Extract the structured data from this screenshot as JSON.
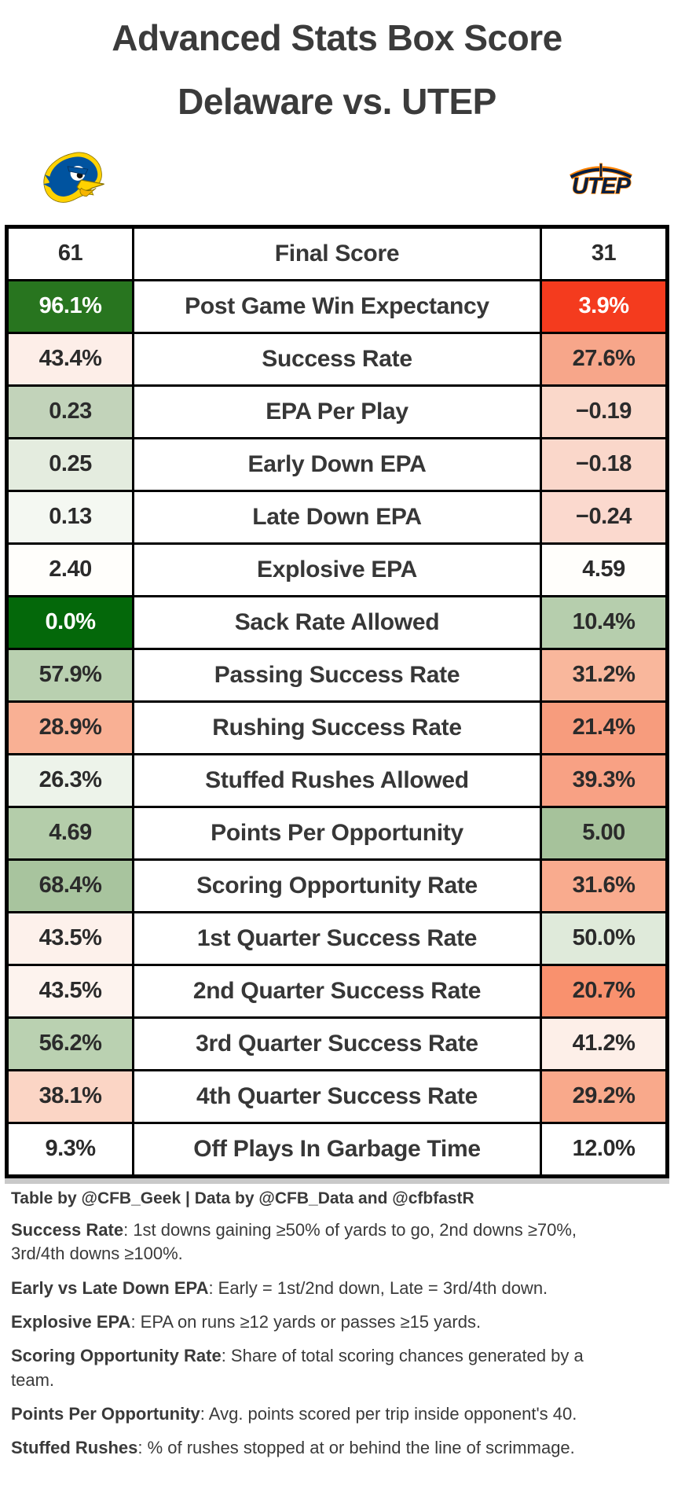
{
  "title": {
    "line1": "Advanced Stats Box Score",
    "line2": "Delaware vs. UTEP"
  },
  "teams": {
    "home": {
      "name": "Delaware",
      "score": "61",
      "colors": {
        "primary": "#00539f",
        "secondary": "#ffd200"
      }
    },
    "away": {
      "name": "UTEP",
      "score": "31",
      "colors": {
        "primary": "#041e42",
        "secondary": "#ff8200"
      }
    }
  },
  "status_colors": {
    "strong_positive_green": "#1b6e12",
    "positive_green": "#28751f",
    "strong_negative_red": "#f43b1e",
    "negative_salmon": "#f79c7d",
    "neutral_white": "#ffffff"
  },
  "table": {
    "rows": [
      {
        "label": "Final Score",
        "home": {
          "value": "61",
          "bg": "#ffffff"
        },
        "away": {
          "value": "31",
          "bg": "#ffffff"
        }
      },
      {
        "label": "Post Game Win Expectancy",
        "home": {
          "value": "96.1%",
          "bg": "#28751f",
          "fg": "#ffffff"
        },
        "away": {
          "value": "3.9%",
          "bg": "#f43b1e",
          "fg": "#ffffff"
        }
      },
      {
        "label": "Success Rate",
        "home": {
          "value": "43.4%",
          "bg": "#fdeee8"
        },
        "away": {
          "value": "27.6%",
          "bg": "#f7a68a"
        }
      },
      {
        "label": "EPA Per Play",
        "home": {
          "value": "0.23",
          "bg": "#c2d3ba"
        },
        "away": {
          "value": "−0.19",
          "bg": "#fad8ca"
        }
      },
      {
        "label": "Early Down EPA",
        "home": {
          "value": "0.25",
          "bg": "#e4ecdf"
        },
        "away": {
          "value": "−0.18",
          "bg": "#fad7ca"
        }
      },
      {
        "label": "Late Down EPA",
        "home": {
          "value": "0.13",
          "bg": "#f4f8f2"
        },
        "away": {
          "value": "−0.24",
          "bg": "#fbd9ce"
        }
      },
      {
        "label": "Explosive EPA",
        "home": {
          "value": "2.40",
          "bg": "#fffefb"
        },
        "away": {
          "value": "4.59",
          "bg": "#fffefb"
        }
      },
      {
        "label": "Sack Rate Allowed",
        "home": {
          "value": "0.0%",
          "bg": "#04680a",
          "fg": "#ffffff"
        },
        "away": {
          "value": "10.4%",
          "bg": "#b6cead"
        }
      },
      {
        "label": "Passing Success Rate",
        "home": {
          "value": "57.9%",
          "bg": "#b9d0b0"
        },
        "away": {
          "value": "31.2%",
          "bg": "#f9b79c"
        }
      },
      {
        "label": "Rushing Success Rate",
        "home": {
          "value": "28.9%",
          "bg": "#f9b094"
        },
        "away": {
          "value": "21.4%",
          "bg": "#f79c7d"
        }
      },
      {
        "label": "Stuffed Rushes Allowed",
        "home": {
          "value": "26.3%",
          "bg": "#edf3ea"
        },
        "away": {
          "value": "39.3%",
          "bg": "#f8a184"
        }
      },
      {
        "label": "Points Per Opportunity",
        "home": {
          "value": "4.69",
          "bg": "#b4cdaa"
        },
        "away": {
          "value": "5.00",
          "bg": "#a6c29b"
        }
      },
      {
        "label": "Scoring Opportunity Rate",
        "home": {
          "value": "68.4%",
          "bg": "#a8c49e"
        },
        "away": {
          "value": "31.6%",
          "bg": "#f9ab8e"
        }
      },
      {
        "label": "1st Quarter Success Rate",
        "home": {
          "value": "43.5%",
          "bg": "#fdf1eb"
        },
        "away": {
          "value": "50.0%",
          "bg": "#dfeada"
        }
      },
      {
        "label": "2nd Quarter Success Rate",
        "home": {
          "value": "43.5%",
          "bg": "#fdf3ee"
        },
        "away": {
          "value": "20.7%",
          "bg": "#f9916e"
        }
      },
      {
        "label": "3rd Quarter Success Rate",
        "home": {
          "value": "56.2%",
          "bg": "#bad1b1"
        },
        "away": {
          "value": "41.2%",
          "bg": "#fdefe8"
        }
      },
      {
        "label": "4th Quarter Success Rate",
        "home": {
          "value": "38.1%",
          "bg": "#fbd5c5"
        },
        "away": {
          "value": "29.2%",
          "bg": "#f9a98b"
        }
      },
      {
        "label": "Off Plays In Garbage Time",
        "home": {
          "value": "9.3%",
          "bg": "#ffffff"
        },
        "away": {
          "value": "12.0%",
          "bg": "#ffffff"
        }
      }
    ]
  },
  "footer": {
    "credit": "Table by @CFB_Geek | Data by @CFB_Data and @cfbfastR",
    "notes": [
      {
        "term": "Success Rate",
        "definition": ": 1st downs gaining ≥50% of yards to go, 2nd downs ≥70%, 3rd/4th downs ≥100%."
      },
      {
        "term": "Early vs Late Down EPA",
        "definition": ": Early = 1st/2nd down, Late = 3rd/4th down."
      },
      {
        "term": "Explosive EPA",
        "definition": ": EPA on runs ≥12 yards or passes ≥15 yards."
      },
      {
        "term": "Scoring Opportunity Rate",
        "definition": ": Share of total scoring chances generated by a team."
      },
      {
        "term": "Points Per Opportunity",
        "definition": ": Avg. points scored per trip inside opponent's 40."
      },
      {
        "term": "Stuffed Rushes",
        "definition": ": % of rushes stopped at or behind the line of scrimmage."
      }
    ]
  }
}
